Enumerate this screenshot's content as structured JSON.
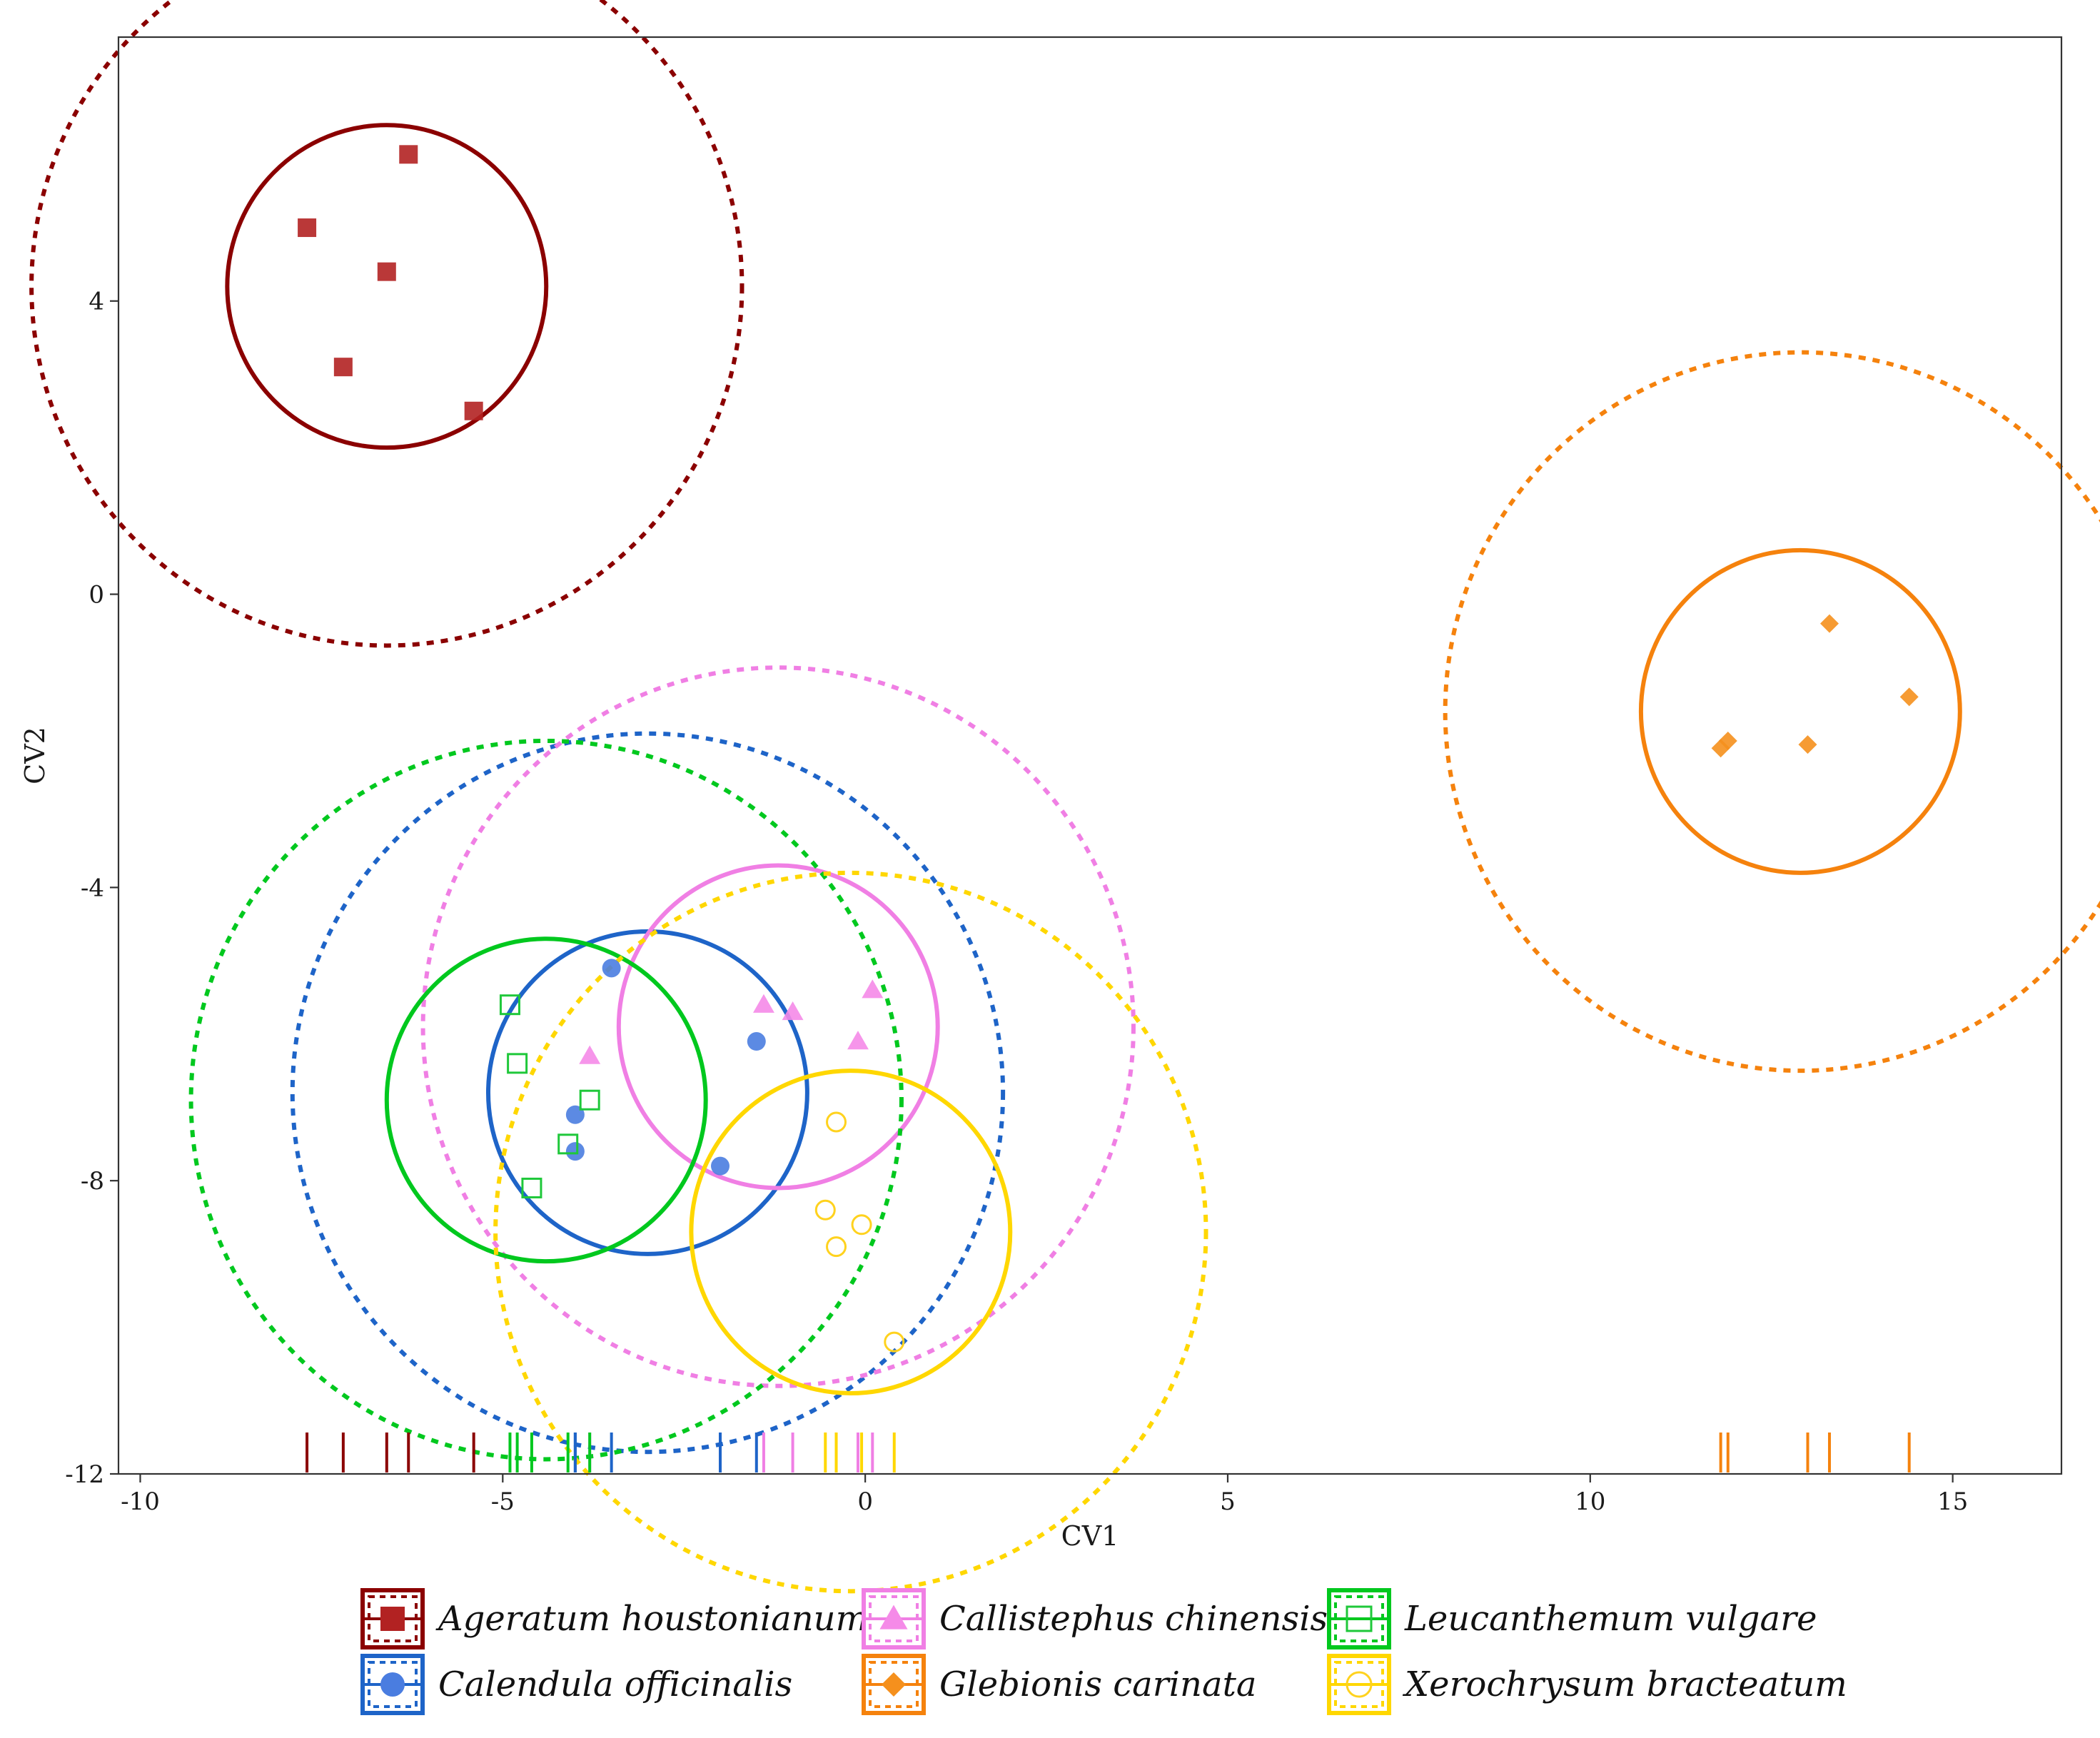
{
  "chart_data": {
    "type": "scatter",
    "title": "",
    "xlabel": "CV1",
    "ylabel": "CV2",
    "xlim": [
      -10.3,
      16.5
    ],
    "ylim": [
      -12,
      7.6
    ],
    "x_ticks": [
      -10,
      -5,
      0,
      5,
      10,
      15
    ],
    "x_tick_labels": [
      "-10",
      "-5",
      "0",
      "5",
      "10",
      "15"
    ],
    "y_ticks": [
      -12,
      -8,
      -4,
      0,
      4
    ],
    "y_tick_labels": [
      "-12",
      "-8",
      "-4",
      "0",
      "4"
    ],
    "grid": false,
    "legend_position": "bottom",
    "rug": "bottom",
    "series": [
      {
        "name": "Ageratum houstonianum",
        "color": "#8b0000",
        "marker_color": "#b22222",
        "marker": "filled-square",
        "points": [
          [
            -6.3,
            6.0
          ],
          [
            -7.7,
            5.0
          ],
          [
            -6.6,
            4.4
          ],
          [
            -7.2,
            3.1
          ],
          [
            -5.4,
            2.5
          ]
        ],
        "centroid": [
          -6.6,
          4.2
        ],
        "inner_radius": 2.2,
        "outer_radius": 4.9
      },
      {
        "name": "Calendula officinalis",
        "color": "#1e64c8",
        "marker_color": "#4a7de0",
        "marker": "filled-circle",
        "points": [
          [
            -3.5,
            -5.1
          ],
          [
            -1.5,
            -6.1
          ],
          [
            -4.0,
            -7.1
          ],
          [
            -4.0,
            -7.6
          ],
          [
            -2.0,
            -7.8
          ]
        ],
        "centroid": [
          -3.0,
          -6.8
        ],
        "inner_radius": 2.2,
        "outer_radius": 4.9
      },
      {
        "name": "Callistephus chinensis",
        "color": "#f07fe4",
        "marker_color": "#f58ae8",
        "marker": "filled-triangle",
        "points": [
          [
            0.1,
            -5.4
          ],
          [
            -1.4,
            -5.6
          ],
          [
            -1.0,
            -5.7
          ],
          [
            -0.1,
            -6.1
          ],
          [
            -3.8,
            -6.3
          ]
        ],
        "centroid": [
          -1.2,
          -5.9
        ],
        "inner_radius": 2.2,
        "outer_radius": 4.9
      },
      {
        "name": "Glebionis carinata",
        "color": "#f5820d",
        "marker_color": "#f5901d",
        "marker": "filled-diamond",
        "points": [
          [
            13.3,
            -0.4
          ],
          [
            14.4,
            -1.4
          ],
          [
            11.9,
            -2.0
          ],
          [
            11.8,
            -2.1
          ],
          [
            13.0,
            -2.05
          ]
        ],
        "centroid": [
          12.9,
          -1.6
        ],
        "inner_radius": 2.2,
        "outer_radius": 4.9
      },
      {
        "name": "Leucanthemum vulgare",
        "color": "#00c81e",
        "marker_color": "#1fc83a",
        "marker": "open-square",
        "points": [
          [
            -4.9,
            -5.6
          ],
          [
            -4.8,
            -6.4
          ],
          [
            -3.8,
            -6.9
          ],
          [
            -4.1,
            -7.5
          ],
          [
            -4.6,
            -8.1
          ]
        ],
        "centroid": [
          -4.4,
          -6.9
        ],
        "inner_radius": 2.2,
        "outer_radius": 4.9
      },
      {
        "name": "Xerochrysum bracteatum",
        "color": "#ffd700",
        "marker_color": "#ffd21e",
        "marker": "open-circle",
        "points": [
          [
            -0.4,
            -7.2
          ],
          [
            -0.55,
            -8.4
          ],
          [
            -0.05,
            -8.6
          ],
          [
            -0.4,
            -8.9
          ],
          [
            0.4,
            -10.2
          ]
        ],
        "centroid": [
          -0.2,
          -8.7
        ],
        "inner_radius": 2.2,
        "outer_radius": 4.9
      }
    ]
  }
}
